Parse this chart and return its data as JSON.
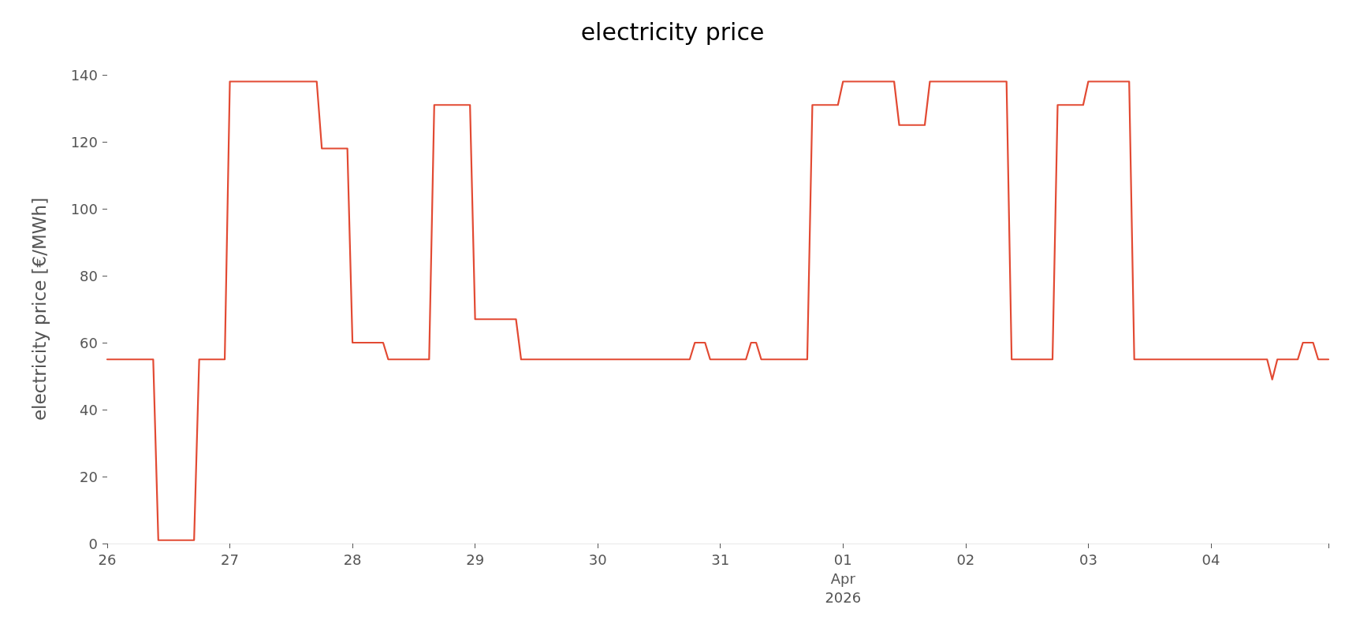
{
  "chart_data": {
    "type": "line",
    "title": "electricity price",
    "ylabel": "electricity price [€/MWh]",
    "x": [
      "2026-03-26T00:00",
      "2026-03-26T09:00",
      "2026-03-26T10:00",
      "2026-03-26T17:00",
      "2026-03-26T18:00",
      "2026-03-26T23:00",
      "2026-03-27T00:00",
      "2026-03-27T17:00",
      "2026-03-27T18:00",
      "2026-03-27T23:00",
      "2026-03-28T00:00",
      "2026-03-28T06:00",
      "2026-03-28T07:00",
      "2026-03-28T15:00",
      "2026-03-28T16:00",
      "2026-03-28T23:00",
      "2026-03-29T00:00",
      "2026-03-29T08:00",
      "2026-03-29T09:00",
      "2026-03-30T18:00",
      "2026-03-30T19:00",
      "2026-03-30T21:00",
      "2026-03-30T22:00",
      "2026-03-31T05:00",
      "2026-03-31T06:00",
      "2026-03-31T07:00",
      "2026-03-31T08:00",
      "2026-03-31T17:00",
      "2026-03-31T18:00",
      "2026-03-31T23:00",
      "2026-04-01T00:00",
      "2026-04-01T10:00",
      "2026-04-01T11:00",
      "2026-04-01T16:00",
      "2026-04-01T17:00",
      "2026-04-02T08:00",
      "2026-04-02T09:00",
      "2026-04-02T17:00",
      "2026-04-02T18:00",
      "2026-04-02T23:00",
      "2026-04-03T00:00",
      "2026-04-03T08:00",
      "2026-04-03T09:00",
      "2026-04-04T11:00",
      "2026-04-04T12:00",
      "2026-04-04T13:00",
      "2026-04-04T17:00",
      "2026-04-04T18:00",
      "2026-04-04T20:00",
      "2026-04-04T21:00",
      "2026-04-04T23:00"
    ],
    "series": [
      {
        "color": "#e24a33",
        "values": [
          55,
          55,
          1,
          1,
          55,
          55,
          138,
          138,
          118,
          118,
          60,
          60,
          55,
          55,
          131,
          131,
          67,
          67,
          55,
          55,
          60,
          60,
          55,
          55,
          60,
          60,
          55,
          55,
          131,
          131,
          138,
          138,
          125,
          125,
          138,
          138,
          55,
          55,
          131,
          131,
          138,
          138,
          55,
          55,
          49,
          55,
          55,
          60,
          60,
          55,
          55
        ]
      }
    ],
    "xticks": [
      {
        "value": "2026-03-26",
        "label": "26"
      },
      {
        "value": "2026-03-27",
        "label": "27"
      },
      {
        "value": "2026-03-28",
        "label": "28"
      },
      {
        "value": "2026-03-29",
        "label": "29"
      },
      {
        "value": "2026-03-30",
        "label": "30"
      },
      {
        "value": "2026-03-31",
        "label": "31"
      },
      {
        "value": "2026-04-01",
        "label": "01\nApr\n2026"
      },
      {
        "value": "2026-04-02",
        "label": "02"
      },
      {
        "value": "2026-04-03",
        "label": "03"
      },
      {
        "value": "2026-04-04",
        "label": "04"
      },
      {
        "value": "2026-04-04T23:00",
        "label": null
      }
    ],
    "xlim": [
      "2026-03-26T00:00",
      "2026-04-04T23:00"
    ],
    "ylim": [
      0,
      140
    ],
    "yticks": [
      0,
      20,
      40,
      60,
      80,
      100,
      120,
      140
    ],
    "grid": false,
    "marker": "none",
    "line_style": "solid"
  }
}
